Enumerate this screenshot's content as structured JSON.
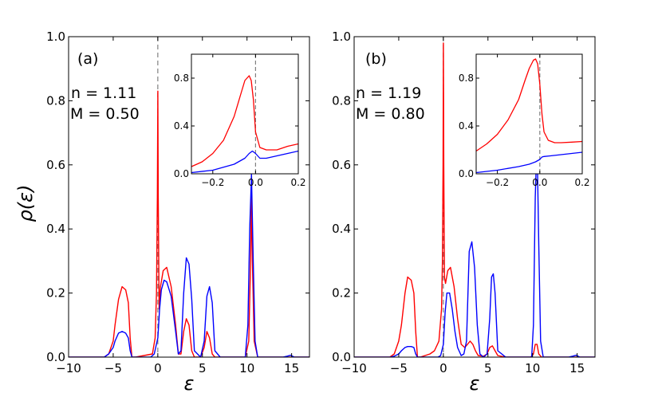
{
  "figure": {
    "ylabel": "ρ(ε)"
  },
  "chart_data": [
    {
      "type": "line",
      "panel_label": "(a)",
      "annotation_n": "n = 1.11",
      "annotation_m": "M = 0.50",
      "xlabel": "ε",
      "xlim": [
        -10,
        17
      ],
      "ylim": [
        0,
        1.0
      ],
      "xticks": [
        -10,
        -5,
        0,
        5,
        10,
        15
      ],
      "xtick_labels": [
        "−10",
        "−5",
        "0",
        "5",
        "10",
        "15"
      ],
      "yticks": [
        0.0,
        0.2,
        0.4,
        0.6,
        0.8,
        1.0
      ],
      "ytick_labels": [
        "0.0",
        "0.2",
        "0.4",
        "0.6",
        "0.8",
        "1.0"
      ],
      "colors": {
        "red": "#ff0000",
        "blue": "#0000ff",
        "dash": "#808080"
      },
      "series": [
        {
          "name": "red",
          "x": [
            -12,
            -6.0,
            -5.5,
            -5.0,
            -4.8,
            -4.4,
            -4.0,
            -3.6,
            -3.3,
            -3.1,
            -2.9,
            -2.5,
            -0.6,
            -0.3,
            -0.15,
            -0.05,
            0.0,
            0.05,
            0.15,
            0.3,
            0.6,
            1.0,
            1.5,
            2.0,
            2.3,
            2.6,
            2.9,
            3.2,
            3.5,
            3.8,
            4.1,
            4.8,
            5.2,
            5.5,
            5.8,
            6.1,
            6.4,
            7.0,
            9.8,
            10.2,
            10.4,
            10.5,
            10.6,
            10.8,
            11.2,
            17
          ],
          "y": [
            0,
            0,
            0.01,
            0.05,
            0.1,
            0.18,
            0.22,
            0.21,
            0.17,
            0.06,
            0,
            0,
            0.01,
            0.06,
            0.2,
            0.5,
            0.83,
            0.5,
            0.15,
            0.22,
            0.27,
            0.28,
            0.22,
            0.1,
            0.01,
            0.01,
            0.08,
            0.12,
            0.1,
            0.02,
            0,
            0,
            0.03,
            0.08,
            0.06,
            0.01,
            0,
            0,
            0,
            0.05,
            0.3,
            0.5,
            0.3,
            0.05,
            0,
            0
          ]
        },
        {
          "name": "blue",
          "x": [
            -12,
            -6.0,
            -5.5,
            -5.0,
            -4.8,
            -4.4,
            -4.0,
            -3.6,
            -3.3,
            -3.1,
            -2.9,
            -2.5,
            -0.8,
            -0.4,
            0.0,
            0.2,
            0.4,
            0.7,
            1.0,
            1.5,
            2.0,
            2.3,
            2.6,
            2.9,
            3.2,
            3.5,
            3.8,
            4.1,
            4.8,
            5.2,
            5.5,
            5.8,
            6.1,
            6.4,
            7.0,
            9.8,
            10.1,
            10.3,
            10.5,
            10.7,
            10.9,
            11.2,
            14.0,
            14.5,
            14.9,
            15.3,
            17
          ],
          "y": [
            0,
            0,
            0.01,
            0.03,
            0.05,
            0.075,
            0.08,
            0.075,
            0.06,
            0.02,
            0,
            0,
            0,
            0.01,
            0.06,
            0.15,
            0.21,
            0.24,
            0.235,
            0.19,
            0.08,
            0.01,
            0.02,
            0.2,
            0.31,
            0.29,
            0.18,
            0.02,
            0,
            0.05,
            0.19,
            0.22,
            0.17,
            0.02,
            0,
            0,
            0.1,
            0.4,
            0.57,
            0.3,
            0.05,
            0,
            0,
            0.003,
            0.006,
            0,
            0
          ]
        }
      ],
      "inset": {
        "xlim": [
          -0.3,
          0.2
        ],
        "ylim": [
          0,
          1.0
        ],
        "xticks": [
          -0.2,
          0.0,
          0.2
        ],
        "xtick_labels": [
          "−0.2",
          "0.0",
          "0.2"
        ],
        "yticks": [
          0.0,
          0.4,
          0.8
        ],
        "ytick_labels": [
          "0.0",
          "0.4",
          "0.8"
        ],
        "series": [
          {
            "name": "red",
            "x": [
              -0.3,
              -0.25,
              -0.2,
              -0.15,
              -0.1,
              -0.07,
              -0.05,
              -0.03,
              -0.02,
              -0.01,
              0.0,
              0.02,
              0.05,
              0.1,
              0.15,
              0.2
            ],
            "y": [
              0.06,
              0.1,
              0.17,
              0.28,
              0.48,
              0.66,
              0.78,
              0.82,
              0.78,
              0.62,
              0.35,
              0.22,
              0.2,
              0.2,
              0.23,
              0.25
            ]
          },
          {
            "name": "blue",
            "x": [
              -0.3,
              -0.2,
              -0.1,
              -0.05,
              -0.03,
              -0.015,
              0.0,
              0.02,
              0.05,
              0.1,
              0.15,
              0.2
            ],
            "y": [
              0.01,
              0.03,
              0.08,
              0.13,
              0.17,
              0.19,
              0.17,
              0.13,
              0.13,
              0.15,
              0.17,
              0.19
            ]
          }
        ]
      }
    },
    {
      "type": "line",
      "panel_label": "(b)",
      "annotation_n": "n = 1.19",
      "annotation_m": "M = 0.80",
      "xlabel": "ε",
      "xlim": [
        -10,
        17
      ],
      "ylim": [
        0,
        1.0
      ],
      "xticks": [
        -10,
        -5,
        0,
        5,
        10,
        15
      ],
      "xtick_labels": [
        "−10",
        "−5",
        "0",
        "5",
        "10",
        "15"
      ],
      "yticks": [
        0.0,
        0.2,
        0.4,
        0.6,
        0.8,
        1.0
      ],
      "ytick_labels": [
        "0.0",
        "0.2",
        "0.4",
        "0.6",
        "0.8",
        "1.0"
      ],
      "colors": {
        "red": "#ff0000",
        "blue": "#0000ff",
        "dash": "#808080"
      },
      "series": [
        {
          "name": "red",
          "x": [
            -12,
            -6.0,
            -5.5,
            -5.0,
            -4.7,
            -4.3,
            -4.0,
            -3.6,
            -3.3,
            -3.1,
            -2.9,
            -2.6,
            -1.5,
            -1.0,
            -0.5,
            -0.2,
            -0.1,
            -0.03,
            0.0,
            0.05,
            0.12,
            0.25,
            0.5,
            0.8,
            1.2,
            1.6,
            2.0,
            2.4,
            2.7,
            3.0,
            3.3,
            3.6,
            3.9,
            4.5,
            4.9,
            5.2,
            5.5,
            5.8,
            6.1,
            7.0,
            9.8,
            10.1,
            10.3,
            10.5,
            10.7,
            11.0,
            17
          ],
          "y": [
            0,
            0,
            0.01,
            0.05,
            0.1,
            0.2,
            0.25,
            0.24,
            0.2,
            0.08,
            0,
            0,
            0.01,
            0.02,
            0.05,
            0.15,
            0.3,
            0.6,
            0.98,
            0.6,
            0.25,
            0.23,
            0.27,
            0.28,
            0.22,
            0.12,
            0.04,
            0.03,
            0.04,
            0.05,
            0.04,
            0.02,
            0.005,
            0.003,
            0.01,
            0.03,
            0.035,
            0.02,
            0.005,
            0,
            0,
            0.01,
            0.04,
            0.04,
            0.01,
            0,
            0
          ]
        },
        {
          "name": "blue",
          "x": [
            -12,
            -6.0,
            -5.5,
            -5.0,
            -4.7,
            -4.3,
            -4.0,
            -3.6,
            -3.3,
            -3.1,
            -2.9,
            -2.6,
            -0.6,
            -0.3,
            0.0,
            0.2,
            0.4,
            0.7,
            1.0,
            1.3,
            1.6,
            2.0,
            2.3,
            2.6,
            2.9,
            3.2,
            3.5,
            3.8,
            4.1,
            4.5,
            4.9,
            5.2,
            5.4,
            5.6,
            5.8,
            6.1,
            7.0,
            9.9,
            10.1,
            10.3,
            10.5,
            10.7,
            10.9,
            11.2,
            14.0,
            14.5,
            14.9,
            15.3,
            17
          ],
          "y": [
            0,
            0,
            0.003,
            0.01,
            0.02,
            0.03,
            0.033,
            0.033,
            0.03,
            0.01,
            0,
            0,
            0,
            0.005,
            0.04,
            0.14,
            0.2,
            0.2,
            0.15,
            0.08,
            0.03,
            0.005,
            0.01,
            0.05,
            0.33,
            0.36,
            0.28,
            0.1,
            0.01,
            0,
            0.01,
            0.12,
            0.25,
            0.26,
            0.2,
            0.02,
            0,
            0,
            0.1,
            0.5,
            0.68,
            0.35,
            0.05,
            0,
            0,
            0.003,
            0.006,
            0,
            0
          ]
        }
      ],
      "inset": {
        "xlim": [
          -0.3,
          0.2
        ],
        "ylim": [
          0,
          1.0
        ],
        "xticks": [
          -0.2,
          0.0,
          0.2
        ],
        "xtick_labels": [
          "−0.2",
          "0.0",
          "0.2"
        ],
        "yticks": [
          0.0,
          0.4,
          0.8
        ],
        "ytick_labels": [
          "0.0",
          "0.4",
          "0.8"
        ],
        "series": [
          {
            "name": "red",
            "x": [
              -0.3,
              -0.25,
              -0.2,
              -0.15,
              -0.1,
              -0.07,
              -0.05,
              -0.03,
              -0.02,
              -0.01,
              0.0,
              0.01,
              0.02,
              0.04,
              0.07,
              0.1,
              0.15,
              0.2
            ],
            "y": [
              0.19,
              0.25,
              0.33,
              0.45,
              0.62,
              0.78,
              0.88,
              0.95,
              0.96,
              0.92,
              0.75,
              0.5,
              0.35,
              0.28,
              0.26,
              0.26,
              0.265,
              0.27
            ]
          },
          {
            "name": "blue",
            "x": [
              -0.3,
              -0.2,
              -0.1,
              -0.05,
              -0.02,
              0.0,
              0.01,
              0.02,
              0.05,
              0.1,
              0.15,
              0.2
            ],
            "y": [
              0.01,
              0.03,
              0.06,
              0.08,
              0.1,
              0.12,
              0.14,
              0.145,
              0.15,
              0.16,
              0.17,
              0.18
            ]
          }
        ]
      }
    }
  ]
}
